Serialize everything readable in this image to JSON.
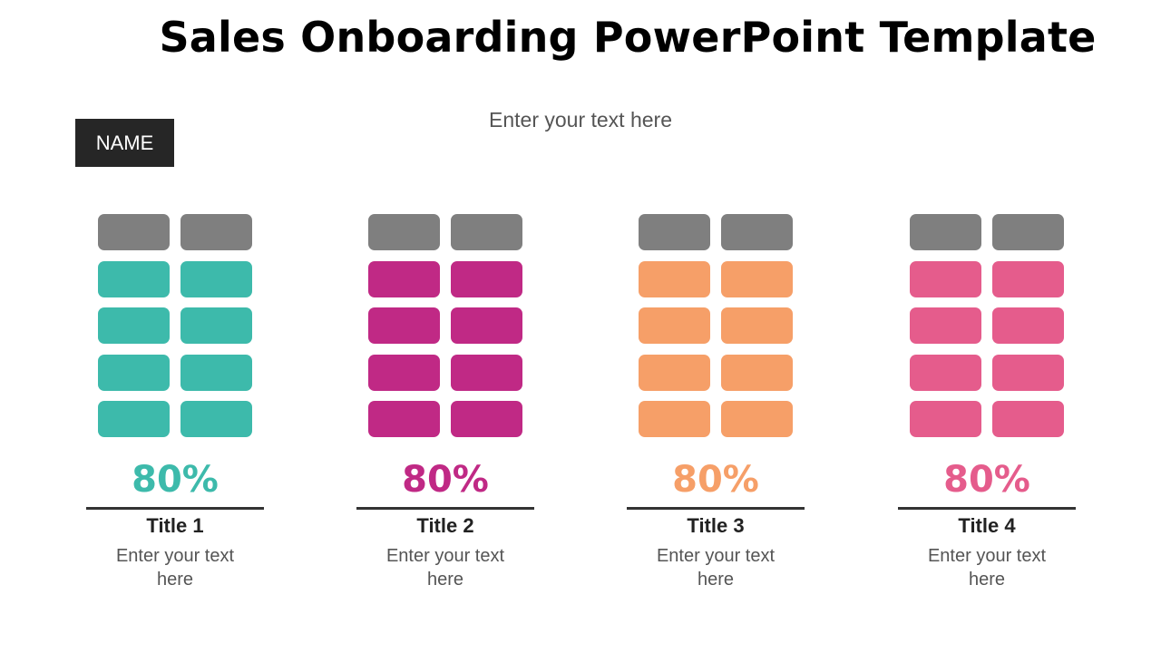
{
  "slide": {
    "title": "Sales Onboarding PowerPoint Template",
    "subtitle": "Enter your text here",
    "name_badge": "NAME"
  },
  "colors": {
    "inactive": "#7f7f7f",
    "divider": "#333333"
  },
  "columns": [
    {
      "title": "Title 1",
      "percent_label": "80%",
      "filled_fraction": 0.8,
      "color": "#3dbaab",
      "text": "Enter your text here"
    },
    {
      "title": "Title 2",
      "percent_label": "80%",
      "filled_fraction": 0.8,
      "color": "#c02985",
      "text": "Enter your text here"
    },
    {
      "title": "Title 3",
      "percent_label": "80%",
      "filled_fraction": 0.8,
      "color": "#f69f68",
      "text": "Enter your text here"
    },
    {
      "title": "Title 4",
      "percent_label": "80%",
      "filled_fraction": 0.8,
      "color": "#e55c8c",
      "text": "Enter your text here"
    }
  ]
}
